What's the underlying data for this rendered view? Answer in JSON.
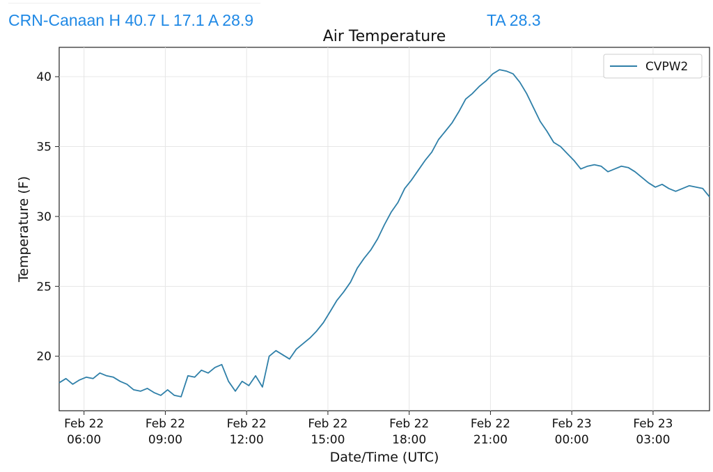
{
  "header": {
    "station_summary": "CRN-Canaan H 40.7 L 17.1 A 28.9",
    "ta_readout": "TA 28.3"
  },
  "chart_data": {
    "type": "line",
    "title": "Air Temperature",
    "xlabel": "Date/Time (UTC)",
    "ylabel": "Temperature (F)",
    "x_range": [
      "2023-02-22T05:05",
      "2023-02-23T05:05"
    ],
    "ylim": [
      16.1,
      42.1
    ],
    "yticks": [
      20,
      25,
      30,
      35,
      40
    ],
    "xticks": [
      {
        "date": "2023-02-22T06:00",
        "line1": "Feb 22",
        "line2": "06:00"
      },
      {
        "date": "2023-02-22T09:00",
        "line1": "Feb 22",
        "line2": "09:00"
      },
      {
        "date": "2023-02-22T12:00",
        "line1": "Feb 22",
        "line2": "12:00"
      },
      {
        "date": "2023-02-22T15:00",
        "line1": "Feb 22",
        "line2": "15:00"
      },
      {
        "date": "2023-02-22T18:00",
        "line1": "Feb 22",
        "line2": "18:00"
      },
      {
        "date": "2023-02-22T21:00",
        "line1": "Feb 22",
        "line2": "21:00"
      },
      {
        "date": "2023-02-23T00:00",
        "line1": "Feb 23",
        "line2": "00:00"
      },
      {
        "date": "2023-02-23T03:00",
        "line1": "Feb 23",
        "line2": "03:00"
      }
    ],
    "grid": true,
    "legend_position": "top-right",
    "series": [
      {
        "name": "CVPW2",
        "color": "#2e7fa8",
        "points": [
          [
            "2023-02-22T05:05",
            18.1
          ],
          [
            "2023-02-22T05:20",
            18.4
          ],
          [
            "2023-02-22T05:35",
            18.0
          ],
          [
            "2023-02-22T05:50",
            18.3
          ],
          [
            "2023-02-22T06:05",
            18.5
          ],
          [
            "2023-02-22T06:20",
            18.4
          ],
          [
            "2023-02-22T06:35",
            18.8
          ],
          [
            "2023-02-22T06:50",
            18.6
          ],
          [
            "2023-02-22T07:05",
            18.5
          ],
          [
            "2023-02-22T07:20",
            18.2
          ],
          [
            "2023-02-22T07:35",
            18.0
          ],
          [
            "2023-02-22T07:50",
            17.6
          ],
          [
            "2023-02-22T08:05",
            17.5
          ],
          [
            "2023-02-22T08:20",
            17.7
          ],
          [
            "2023-02-22T08:35",
            17.4
          ],
          [
            "2023-02-22T08:50",
            17.2
          ],
          [
            "2023-02-22T09:05",
            17.6
          ],
          [
            "2023-02-22T09:20",
            17.2
          ],
          [
            "2023-02-22T09:35",
            17.1
          ],
          [
            "2023-02-22T09:50",
            18.6
          ],
          [
            "2023-02-22T10:05",
            18.5
          ],
          [
            "2023-02-22T10:20",
            19.0
          ],
          [
            "2023-02-22T10:35",
            18.8
          ],
          [
            "2023-02-22T10:50",
            19.2
          ],
          [
            "2023-02-22T11:05",
            19.4
          ],
          [
            "2023-02-22T11:20",
            18.2
          ],
          [
            "2023-02-22T11:35",
            17.5
          ],
          [
            "2023-02-22T11:50",
            18.2
          ],
          [
            "2023-02-22T12:05",
            17.9
          ],
          [
            "2023-02-22T12:20",
            18.6
          ],
          [
            "2023-02-22T12:35",
            17.8
          ],
          [
            "2023-02-22T12:50",
            20.0
          ],
          [
            "2023-02-22T13:05",
            20.4
          ],
          [
            "2023-02-22T13:20",
            20.1
          ],
          [
            "2023-02-22T13:35",
            19.8
          ],
          [
            "2023-02-22T13:50",
            20.5
          ],
          [
            "2023-02-22T14:05",
            20.9
          ],
          [
            "2023-02-22T14:20",
            21.3
          ],
          [
            "2023-02-22T14:35",
            21.8
          ],
          [
            "2023-02-22T14:50",
            22.4
          ],
          [
            "2023-02-22T15:05",
            23.2
          ],
          [
            "2023-02-22T15:20",
            24.0
          ],
          [
            "2023-02-22T15:35",
            24.6
          ],
          [
            "2023-02-22T15:50",
            25.3
          ],
          [
            "2023-02-22T16:05",
            26.3
          ],
          [
            "2023-02-22T16:20",
            27.0
          ],
          [
            "2023-02-22T16:35",
            27.6
          ],
          [
            "2023-02-22T16:50",
            28.4
          ],
          [
            "2023-02-22T17:05",
            29.4
          ],
          [
            "2023-02-22T17:20",
            30.3
          ],
          [
            "2023-02-22T17:35",
            31.0
          ],
          [
            "2023-02-22T17:50",
            32.0
          ],
          [
            "2023-02-22T18:05",
            32.6
          ],
          [
            "2023-02-22T18:20",
            33.3
          ],
          [
            "2023-02-22T18:35",
            34.0
          ],
          [
            "2023-02-22T18:50",
            34.6
          ],
          [
            "2023-02-22T19:05",
            35.5
          ],
          [
            "2023-02-22T19:20",
            36.1
          ],
          [
            "2023-02-22T19:35",
            36.7
          ],
          [
            "2023-02-22T19:50",
            37.5
          ],
          [
            "2023-02-22T20:05",
            38.4
          ],
          [
            "2023-02-22T20:20",
            38.8
          ],
          [
            "2023-02-22T20:35",
            39.3
          ],
          [
            "2023-02-22T20:50",
            39.7
          ],
          [
            "2023-02-22T21:05",
            40.2
          ],
          [
            "2023-02-22T21:20",
            40.5
          ],
          [
            "2023-02-22T21:35",
            40.4
          ],
          [
            "2023-02-22T21:50",
            40.2
          ],
          [
            "2023-02-22T22:05",
            39.6
          ],
          [
            "2023-02-22T22:20",
            38.8
          ],
          [
            "2023-02-22T22:35",
            37.8
          ],
          [
            "2023-02-22T22:50",
            36.8
          ],
          [
            "2023-02-22T23:05",
            36.1
          ],
          [
            "2023-02-22T23:20",
            35.3
          ],
          [
            "2023-02-22T23:35",
            35.0
          ],
          [
            "2023-02-22T23:50",
            34.5
          ],
          [
            "2023-02-23T00:05",
            34.0
          ],
          [
            "2023-02-23T00:20",
            33.4
          ],
          [
            "2023-02-23T00:35",
            33.6
          ],
          [
            "2023-02-23T00:50",
            33.7
          ],
          [
            "2023-02-23T01:05",
            33.6
          ],
          [
            "2023-02-23T01:20",
            33.2
          ],
          [
            "2023-02-23T01:35",
            33.4
          ],
          [
            "2023-02-23T01:50",
            33.6
          ],
          [
            "2023-02-23T02:05",
            33.5
          ],
          [
            "2023-02-23T02:20",
            33.2
          ],
          [
            "2023-02-23T02:35",
            32.8
          ],
          [
            "2023-02-23T02:50",
            32.4
          ],
          [
            "2023-02-23T03:05",
            32.1
          ],
          [
            "2023-02-23T03:20",
            32.3
          ],
          [
            "2023-02-23T03:35",
            32.0
          ],
          [
            "2023-02-23T03:50",
            31.8
          ],
          [
            "2023-02-23T04:05",
            32.0
          ],
          [
            "2023-02-23T04:20",
            32.2
          ],
          [
            "2023-02-23T04:35",
            32.1
          ],
          [
            "2023-02-23T04:50",
            32.0
          ],
          [
            "2023-02-23T05:05",
            31.4
          ]
        ]
      }
    ]
  }
}
